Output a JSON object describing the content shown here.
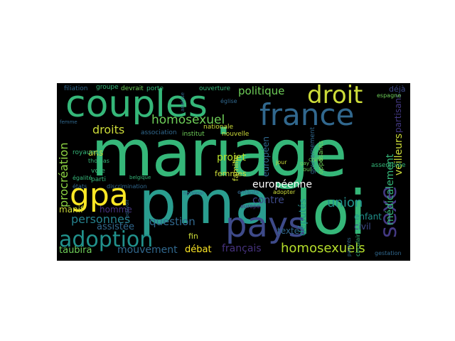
{
  "cloud": {
    "background": "#000000",
    "words": [
      {
        "text": "mariage",
        "color": "#35b779"
      },
      {
        "text": "couples",
        "color": "#35b779"
      },
      {
        "text": "pma",
        "color": "#2a9d8f"
      },
      {
        "text": "loi",
        "color": "#35b779"
      },
      {
        "text": "gpa",
        "color": "#fde725"
      },
      {
        "text": "droit",
        "color": "#cddc39"
      },
      {
        "text": "france",
        "color": "#31688e"
      },
      {
        "text": "pays",
        "color": "#3e4a89"
      },
      {
        "text": "adoption",
        "color": "#21918c"
      },
      {
        "text": "sexe",
        "color": "#443983"
      },
      {
        "text": "homosexuels",
        "color": "#b5de2b"
      },
      {
        "text": "homosexuel",
        "color": "#6ece58"
      },
      {
        "text": "droits",
        "color": "#cddc39"
      },
      {
        "text": "procréation",
        "color": "#8fd744"
      },
      {
        "text": "personnes",
        "color": "#26828e"
      },
      {
        "text": "union",
        "color": "#21918c"
      },
      {
        "text": "politique",
        "color": "#6ece58"
      },
      {
        "text": "européenne",
        "color": "#ffffff"
      },
      {
        "text": "projet",
        "color": "#b5de2b"
      },
      {
        "text": "contre",
        "color": "#3e4a89"
      },
      {
        "text": "question",
        "color": "#31688e"
      },
      {
        "text": "assistée",
        "color": "#31688e"
      },
      {
        "text": "mouvement",
        "color": "#31688e"
      },
      {
        "text": "taubira",
        "color": "#6ece58"
      },
      {
        "text": "débat",
        "color": "#fde725"
      },
      {
        "text": "français",
        "color": "#46327e"
      },
      {
        "text": "députés",
        "color": "#21918c"
      },
      {
        "text": "médicalement",
        "color": "#35b779"
      },
      {
        "text": "veilleurs",
        "color": "#cddc39"
      },
      {
        "text": "partisans",
        "color": "#443983"
      },
      {
        "text": "enfant",
        "color": "#21918c"
      },
      {
        "text": "civil",
        "color": "#3e4a89"
      },
      {
        "text": "texte",
        "color": "#31688e"
      },
      {
        "text": "européen",
        "color": "#31688e"
      },
      {
        "text": "ans",
        "color": "#cddc39"
      },
      {
        "text": "manif",
        "color": "#cddc39"
      },
      {
        "text": "homme",
        "color": "#46327e"
      },
      {
        "text": "famille",
        "color": "#cddc39"
      },
      {
        "text": "femmes",
        "color": "#cddc39"
      },
      {
        "text": "fin",
        "color": "#cddc39"
      },
      {
        "text": "déjà",
        "color": "#3e4a89"
      },
      {
        "text": "égalité",
        "color": "#35b779"
      },
      {
        "text": "royaume",
        "color": "#35b779"
      },
      {
        "text": "filiation",
        "color": "#31688e"
      },
      {
        "text": "groupe",
        "color": "#35b779"
      },
      {
        "text": "devrait",
        "color": "#6ece58"
      },
      {
        "text": "porte",
        "color": "#35b779"
      },
      {
        "text": "ouverture",
        "color": "#35b779"
      },
      {
        "text": "espagne",
        "color": "#6ece58"
      },
      {
        "text": "nationale",
        "color": "#cddc39"
      },
      {
        "text": "nouvelle",
        "color": "#cddc39"
      },
      {
        "text": "institut",
        "color": "#6ece58"
      },
      {
        "text": "association",
        "color": "#31688e"
      },
      {
        "text": "gouvernement",
        "color": "#31688e"
      },
      {
        "text": "opposants",
        "color": "#6ece58"
      },
      {
        "text": "assemblée",
        "color": "#35b779"
      },
      {
        "text": "gestation",
        "color": "#31688e"
      },
      {
        "text": "circulaire",
        "color": "#35b779"
      },
      {
        "text": "parents",
        "color": "#31688e"
      },
      {
        "text": "europe",
        "color": "#46327e"
      },
      {
        "text": "adopter",
        "color": "#cddc39"
      },
      {
        "text": "enfants",
        "color": "#31688e"
      },
      {
        "text": "vote",
        "color": "#35b779"
      },
      {
        "text": "parti",
        "color": "#35b779"
      },
      {
        "text": "thomas",
        "color": "#35b779"
      },
      {
        "text": "états",
        "color": "#31688e"
      },
      {
        "text": "discrimination",
        "color": "#31688e"
      },
      {
        "text": "belgique",
        "color": "#35b779"
      },
      {
        "text": "pouvoir",
        "color": "#31688e"
      },
      {
        "text": "jour",
        "color": "#cddc39"
      },
      {
        "text": "civile",
        "color": "#6ece58"
      },
      {
        "text": "oui",
        "color": "#6ece58"
      },
      {
        "text": "gay",
        "color": "#6ece58"
      },
      {
        "text": "national",
        "color": "#31688e"
      },
      {
        "text": "église",
        "color": "#31688e"
      },
      {
        "text": "analyse",
        "color": "#31688e"
      },
      {
        "text": "femme",
        "color": "#31688e"
      }
    ]
  }
}
